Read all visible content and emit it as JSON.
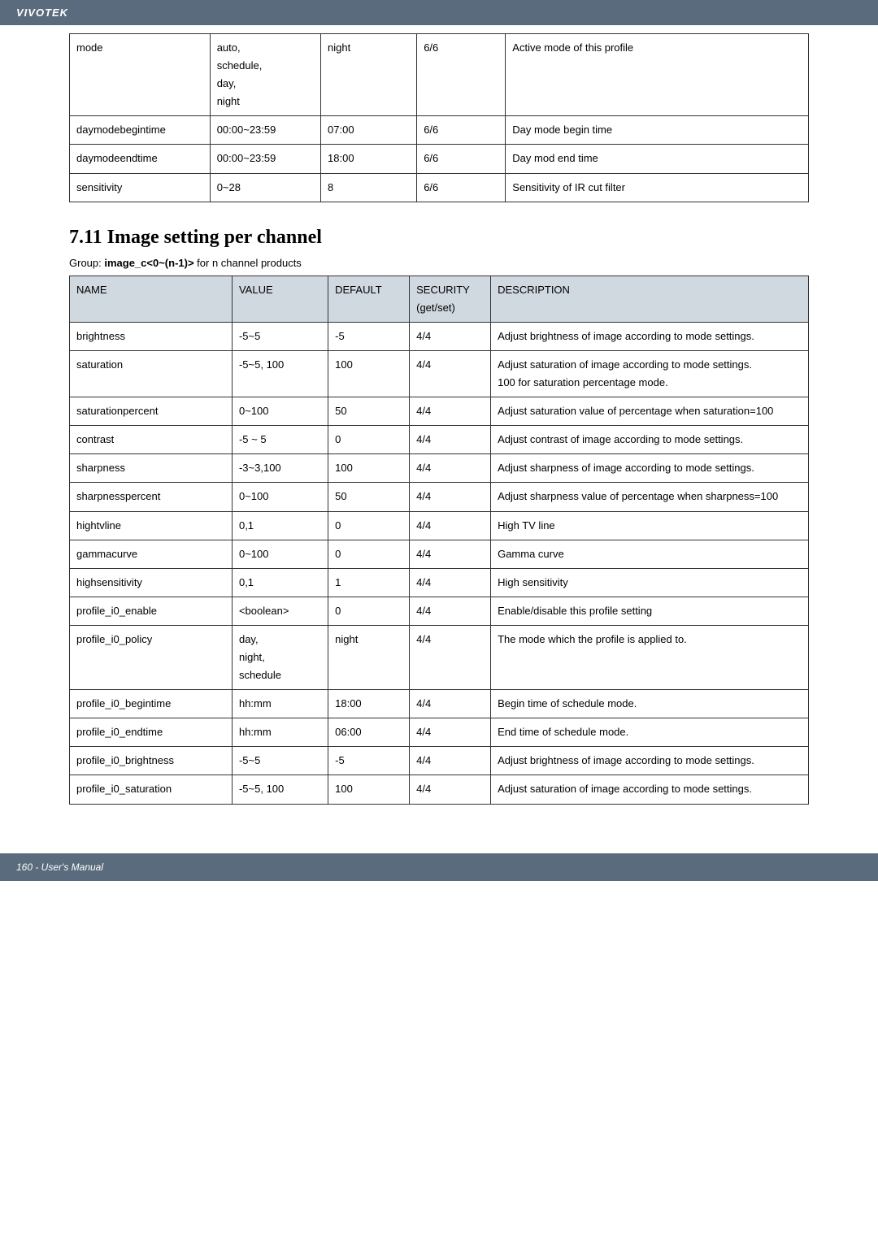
{
  "header": {
    "brand": "VIVOTEK"
  },
  "table1": {
    "rows": [
      [
        "mode",
        "auto,\nschedule,\nday,\nnight",
        "night",
        "6/6",
        "Active mode of this profile"
      ],
      [
        "daymodebegintime",
        "00:00~23:59",
        "07:00",
        "6/6",
        "Day mode begin time"
      ],
      [
        "daymodeendtime",
        "00:00~23:59",
        "18:00",
        "6/6",
        "Day mod end time"
      ],
      [
        "sensitivity",
        "0~28",
        "8",
        "6/6",
        "Sensitivity of IR cut filter"
      ]
    ]
  },
  "section": {
    "heading": "7.11 Image setting per channel",
    "group_prefix": "Group: ",
    "group_bold": "image_c<0~(n-1)>",
    "group_suffix": " for n channel products"
  },
  "table2": {
    "headers": [
      "NAME",
      "VALUE",
      "DEFAULT",
      "SECURITY\n(get/set)",
      "DESCRIPTION"
    ],
    "rows": [
      [
        "brightness",
        "-5~5",
        "-5",
        "4/4",
        "Adjust brightness of image according to mode settings."
      ],
      [
        "saturation",
        "-5~5, 100",
        "100",
        "4/4",
        "Adjust saturation of image according to mode settings.\n100 for saturation percentage mode."
      ],
      [
        "saturationpercent",
        "0~100",
        "50",
        "4/4",
        "Adjust saturation value of percentage when saturation=100"
      ],
      [
        "contrast",
        "-5 ~ 5",
        "0",
        "4/4",
        "Adjust contrast of image according to mode settings."
      ],
      [
        "sharpness",
        "-3~3,100",
        "100",
        "4/4",
        "Adjust sharpness of image according to mode settings."
      ],
      [
        "sharpnesspercent",
        "0~100",
        "50",
        "4/4",
        "Adjust sharpness value of percentage when sharpness=100"
      ],
      [
        "hightvline",
        "0,1",
        "0",
        "4/4",
        "High TV line"
      ],
      [
        "gammacurve",
        "0~100",
        "0",
        "4/4",
        "Gamma curve"
      ],
      [
        "highsensitivity",
        "0,1",
        "1",
        "4/4",
        "High sensitivity"
      ],
      [
        "profile_i0_enable",
        "<boolean>",
        "0",
        "4/4",
        "Enable/disable this profile setting"
      ],
      [
        "profile_i0_policy",
        "day,\nnight,\nschedule",
        "night",
        "4/4",
        "The mode which the profile is applied to."
      ],
      [
        "profile_i0_begintime",
        "hh:mm",
        "18:00",
        "4/4",
        "Begin time of schedule mode."
      ],
      [
        "profile_i0_endtime",
        "hh:mm",
        "06:00",
        "4/4",
        "End time of schedule mode."
      ],
      [
        "profile_i0_brightness",
        "-5~5",
        "-5",
        "4/4",
        "Adjust brightness of image according to mode settings."
      ],
      [
        "profile_i0_saturation",
        "-5~5, 100",
        "100",
        "4/4",
        "Adjust saturation of image according to mode settings."
      ]
    ]
  },
  "footer": {
    "text": "160 - User's Manual"
  }
}
